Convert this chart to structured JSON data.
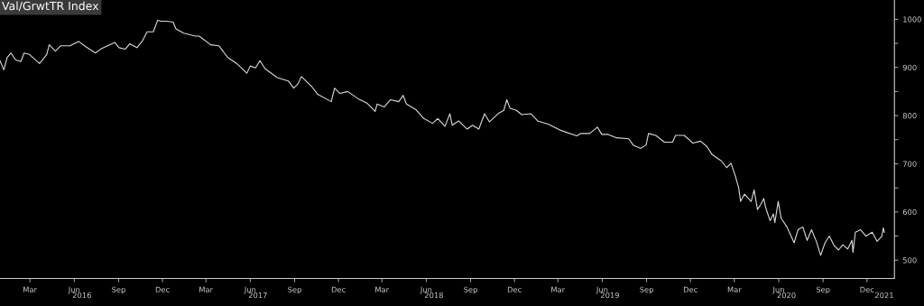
{
  "chart_data": {
    "type": "line",
    "title": "Val/GrwtTR Index",
    "grid": false,
    "marker": "none",
    "line_style": "solid",
    "xlim": [
      "2016-01-13",
      "2021-02-10"
    ],
    "ylim": [
      462,
      1040
    ],
    "yticks": [
      500,
      {
        "value": 550,
        "label": null
      },
      600,
      {
        "value": 650,
        "label": null
      },
      700,
      {
        "value": 750,
        "label": null
      },
      800,
      {
        "value": 850,
        "label": null
      },
      900,
      {
        "value": 950,
        "label": null
      },
      1000
    ],
    "xticks": [
      {
        "value": "2016-03-15",
        "label": "Mar"
      },
      {
        "value": "2016-06-15",
        "label": "Jun"
      },
      {
        "value": "2016-09-15",
        "label": "Sep"
      },
      {
        "value": "2016-12-15",
        "label": "Dec"
      },
      {
        "value": "2017-03-15",
        "label": "Mar"
      },
      {
        "value": "2017-06-15",
        "label": "Jun"
      },
      {
        "value": "2017-09-15",
        "label": "Sep"
      },
      {
        "value": "2017-12-15",
        "label": "Dec"
      },
      {
        "value": "2018-03-15",
        "label": "Mar"
      },
      {
        "value": "2018-06-15",
        "label": "Jun"
      },
      {
        "value": "2018-09-15",
        "label": "Sep"
      },
      {
        "value": "2018-12-15",
        "label": "Dec"
      },
      {
        "value": "2019-03-15",
        "label": "Mar"
      },
      {
        "value": "2019-06-15",
        "label": "Jun"
      },
      {
        "value": "2019-09-15",
        "label": "Sep"
      },
      {
        "value": "2019-12-15",
        "label": "Dec"
      },
      {
        "value": "2020-03-15",
        "label": "Mar"
      },
      {
        "value": "2020-06-15",
        "label": "Jun"
      },
      {
        "value": "2020-09-15",
        "label": "Sep"
      },
      {
        "value": "2020-12-15",
        "label": "Dec"
      }
    ],
    "x2lim": [
      "2016-01-13",
      "2021-02-10"
    ],
    "x2ticks": [
      {
        "value": "2016-07-01",
        "label": "2016"
      },
      {
        "value": "2017-07-01",
        "label": "2017"
      },
      {
        "value": "2018-07-01",
        "label": "2018"
      },
      {
        "value": "2019-07-01",
        "label": "2019"
      },
      {
        "value": "2020-07-01",
        "label": "2020"
      },
      {
        "value": "2021-01-20",
        "label": "2021"
      }
    ],
    "x": [
      "2016-01-13",
      "2016-01-21",
      "2016-01-28",
      "2016-02-05",
      "2016-02-14",
      "2016-02-25",
      "2016-03-03",
      "2016-03-14",
      "2016-04-04",
      "2016-04-19",
      "2016-04-24",
      "2016-05-07",
      "2016-05-18",
      "2016-06-06",
      "2016-06-24",
      "2016-07-09",
      "2016-07-29",
      "2016-08-10",
      "2016-09-07",
      "2016-09-16",
      "2016-09-29",
      "2016-10-08",
      "2016-10-23",
      "2016-11-04",
      "2016-11-13",
      "2016-11-26",
      "2016-12-05",
      "2016-12-12",
      "2016-12-24",
      "2017-01-06",
      "2017-01-12",
      "2017-01-28",
      "2017-02-21",
      "2017-03-01",
      "2017-03-25",
      "2017-04-11",
      "2017-04-29",
      "2017-05-18",
      "2017-06-08",
      "2017-06-15",
      "2017-06-26",
      "2017-07-05",
      "2017-07-16",
      "2017-08-10",
      "2017-09-02",
      "2017-09-13",
      "2017-09-22",
      "2017-09-29",
      "2017-10-20",
      "2017-11-02",
      "2017-11-30",
      "2017-12-07",
      "2017-12-18",
      "2018-01-03",
      "2018-01-25",
      "2018-02-12",
      "2018-03-01",
      "2018-03-05",
      "2018-03-20",
      "2018-04-02",
      "2018-04-19",
      "2018-04-28",
      "2018-05-05",
      "2018-05-24",
      "2018-06-10",
      "2018-06-28",
      "2018-07-09",
      "2018-07-24",
      "2018-08-03",
      "2018-08-08",
      "2018-08-21",
      "2018-09-08",
      "2018-09-19",
      "2018-10-02",
      "2018-10-14",
      "2018-10-24",
      "2018-11-12",
      "2018-11-23",
      "2018-11-29",
      "2018-12-06",
      "2018-12-19",
      "2018-12-30",
      "2019-01-18",
      "2019-02-01",
      "2019-02-24",
      "2019-03-22",
      "2019-04-23",
      "2019-05-02",
      "2019-05-20",
      "2019-06-05",
      "2019-06-14",
      "2019-06-27",
      "2019-07-15",
      "2019-08-09",
      "2019-08-18",
      "2019-09-03",
      "2019-09-14",
      "2019-09-19",
      "2019-10-04",
      "2019-10-22",
      "2019-11-08",
      "2019-11-14",
      "2019-12-02",
      "2019-12-20",
      "2020-01-05",
      "2020-01-18",
      "2020-01-29",
      "2020-02-17",
      "2020-02-28",
      "2020-03-08",
      "2020-03-17",
      "2020-03-24",
      "2020-03-28",
      "2020-04-05",
      "2020-04-19",
      "2020-04-25",
      "2020-05-02",
      "2020-05-09",
      "2020-05-15",
      "2020-05-19",
      "2020-05-28",
      "2020-06-04",
      "2020-06-07",
      "2020-06-14",
      "2020-06-20",
      "2020-07-02",
      "2020-07-17",
      "2020-07-25",
      "2020-08-04",
      "2020-08-13",
      "2020-08-22",
      "2020-09-01",
      "2020-09-10",
      "2020-09-19",
      "2020-09-28",
      "2020-10-08",
      "2020-10-17",
      "2020-10-26",
      "2020-11-05",
      "2020-11-14",
      "2020-11-16",
      "2020-11-21",
      "2020-12-02",
      "2020-12-13",
      "2020-12-26",
      "2021-01-05",
      "2021-01-15",
      "2021-01-18",
      "2021-01-20"
    ],
    "series": [
      {
        "color": "#d9d9d9",
        "values": [
          914,
          895,
          921,
          930,
          916,
          912,
          930,
          927,
          908,
          927,
          947,
          934,
          945,
          945,
          954,
          943,
          930,
          939,
          952,
          941,
          938,
          949,
          941,
          956,
          974,
          974,
          998,
          996,
          996,
          994,
          980,
          971,
          965,
          965,
          947,
          945,
          921,
          908,
          888,
          903,
          899,
          914,
          897,
          879,
          872,
          857,
          866,
          881,
          861,
          844,
          829,
          857,
          846,
          850,
          835,
          826,
          809,
          824,
          818,
          833,
          829,
          842,
          824,
          813,
          794,
          784,
          794,
          778,
          804,
          780,
          789,
          772,
          780,
          772,
          804,
          787,
          805,
          811,
          833,
          815,
          811,
          802,
          804,
          789,
          782,
          769,
          758,
          763,
          763,
          776,
          761,
          761,
          754,
          752,
          739,
          732,
          739,
          763,
          759,
          745,
          745,
          759,
          759,
          743,
          747,
          736,
          719,
          706,
          692,
          701,
          675,
          650,
          622,
          637,
          622,
          646,
          605,
          616,
          628,
          609,
          582,
          596,
          578,
          622,
          587,
          569,
          536,
          563,
          569,
          541,
          563,
          539,
          510,
          536,
          550,
          530,
          521,
          532,
          523,
          541,
          516,
          558,
          563,
          550,
          558,
          539,
          550,
          567,
          558
        ]
      }
    ]
  }
}
